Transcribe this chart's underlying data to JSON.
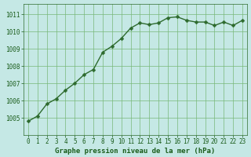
{
  "x": [
    0,
    1,
    2,
    3,
    4,
    5,
    6,
    7,
    8,
    9,
    10,
    11,
    12,
    13,
    14,
    15,
    16,
    17,
    18,
    19,
    20,
    21,
    22,
    23
  ],
  "y": [
    1004.8,
    1005.1,
    1005.8,
    1006.1,
    1006.6,
    1007.0,
    1007.5,
    1007.8,
    1008.8,
    1009.15,
    1009.6,
    1010.2,
    1010.5,
    1010.4,
    1010.5,
    1010.8,
    1010.85,
    1010.65,
    1010.55,
    1010.55,
    1010.35,
    1010.55,
    1010.35,
    1010.65
  ],
  "line_color": "#2d6a2d",
  "marker_color": "#2d6a2d",
  "bg_color": "#c5e8e5",
  "grid_color": "#78b878",
  "xlabel": "Graphe pression niveau de la mer (hPa)",
  "xlabel_color": "#1a5c1a",
  "tick_color": "#1a5c1a",
  "spine_color": "#2d6a2d",
  "ylim_min": 1004.0,
  "ylim_max": 1011.6,
  "yticks": [
    1005,
    1006,
    1007,
    1008,
    1009,
    1010,
    1011
  ],
  "xticks": [
    0,
    1,
    2,
    3,
    4,
    5,
    6,
    7,
    8,
    9,
    10,
    11,
    12,
    13,
    14,
    15,
    16,
    17,
    18,
    19,
    20,
    21,
    22,
    23
  ],
  "marker_size": 2.5,
  "line_width": 1.0,
  "font_size_ticks": 5.5,
  "font_size_xlabel": 6.5
}
